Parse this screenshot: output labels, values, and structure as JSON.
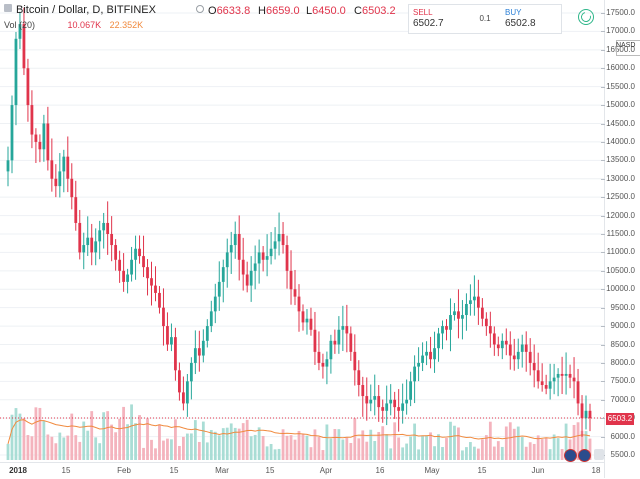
{
  "header": {
    "symbol": "Bitcoin / Dollar, D, BITFINEX",
    "open_label": "O",
    "open": "6633.8",
    "high_label": "H",
    "high": "6659.0",
    "low_label": "L",
    "low": "6450.0",
    "close_label": "C",
    "close": "6503.2"
  },
  "volume": {
    "label": "Vol (20)",
    "value": "10.067K",
    "ma": "22.352K"
  },
  "trade_panel": {
    "sell_label": "SELL",
    "sell_price": "6502.7",
    "quantity": "0.1",
    "buy_label": "BUY",
    "buy_price": "6502.8"
  },
  "exchange_label": "NASD",
  "last_price_label": "6503.2",
  "colors": {
    "up": "#26a69a",
    "down": "#e0344b",
    "volume_ma": "#f08a3e",
    "grid": "#eef1f4"
  },
  "chart_data": {
    "type": "candlestick",
    "title": "Bitcoin / Dollar, D, BITFINEX",
    "ylim": [
      5500,
      17500
    ],
    "y_ticks": [
      "17500.0",
      "17000.0",
      "16500.0",
      "16000.0",
      "15500.0",
      "15000.0",
      "14500.0",
      "14000.0",
      "13500.0",
      "13000.0",
      "12500.0",
      "12000.0",
      "11500.0",
      "11000.0",
      "10500.0",
      "10000.0",
      "9500.0",
      "9000.0",
      "8500.0",
      "8000.0",
      "7500.0",
      "7000.0",
      "6500.0",
      "6000.0",
      "5500.0"
    ],
    "x_ticks": [
      {
        "label": "2018",
        "bold": true
      },
      {
        "label": "15",
        "bold": false
      },
      {
        "label": "Feb",
        "bold": false
      },
      {
        "label": "15",
        "bold": false
      },
      {
        "label": "Mar",
        "bold": false
      },
      {
        "label": "15",
        "bold": false
      },
      {
        "label": "Apr",
        "bold": false
      },
      {
        "label": "16",
        "bold": false
      },
      {
        "label": "May",
        "bold": false
      },
      {
        "label": "15",
        "bold": false
      },
      {
        "label": "Jun",
        "bold": false
      },
      {
        "label": "18",
        "bold": false
      }
    ],
    "close_series": [
      13500,
      15000,
      16800,
      17200,
      16000,
      15000,
      14200,
      14000,
      13800,
      14500,
      13500,
      13000,
      12800,
      13200,
      13600,
      13000,
      12500,
      11800,
      11000,
      11200,
      11400,
      11000,
      11300,
      11600,
      11800,
      11500,
      11200,
      10800,
      10500,
      10200,
      10400,
      10800,
      11100,
      10900,
      10600,
      10300,
      10100,
      9900,
      9500,
      9000,
      8500,
      8700,
      7800,
      7200,
      6900,
      7500,
      8000,
      8400,
      8200,
      8600,
      9000,
      9400,
      9800,
      10200,
      10600,
      11000,
      11200,
      11500,
      10800,
      10400,
      10100,
      10500,
      10700,
      11000,
      10800,
      10900,
      11100,
      11300,
      11500,
      11200,
      10500,
      10000,
      9800,
      9400,
      9100,
      9200,
      8900,
      8300,
      8000,
      7900,
      8100,
      8600,
      8500,
      8900,
      9000,
      8800,
      8300,
      7800,
      7400,
      7100,
      6900,
      7000,
      7100,
      6800,
      6700,
      6900,
      7000,
      6800,
      6700,
      6900,
      7000,
      7500,
      7900,
      8000,
      8200,
      8300,
      8100,
      8400,
      8800,
      9000,
      8900,
      9300,
      9400,
      9200,
      9300,
      9600,
      9700,
      9800,
      9500,
      9200,
      9000,
      8800,
      8500,
      8400,
      8600,
      8500,
      8200,
      8100,
      8300,
      8500,
      8300,
      8000,
      7800,
      7500,
      7400,
      7300,
      7500,
      7600,
      7700,
      7650,
      7700,
      7600,
      7500,
      6900,
      6500,
      6700,
      6500
    ]
  }
}
